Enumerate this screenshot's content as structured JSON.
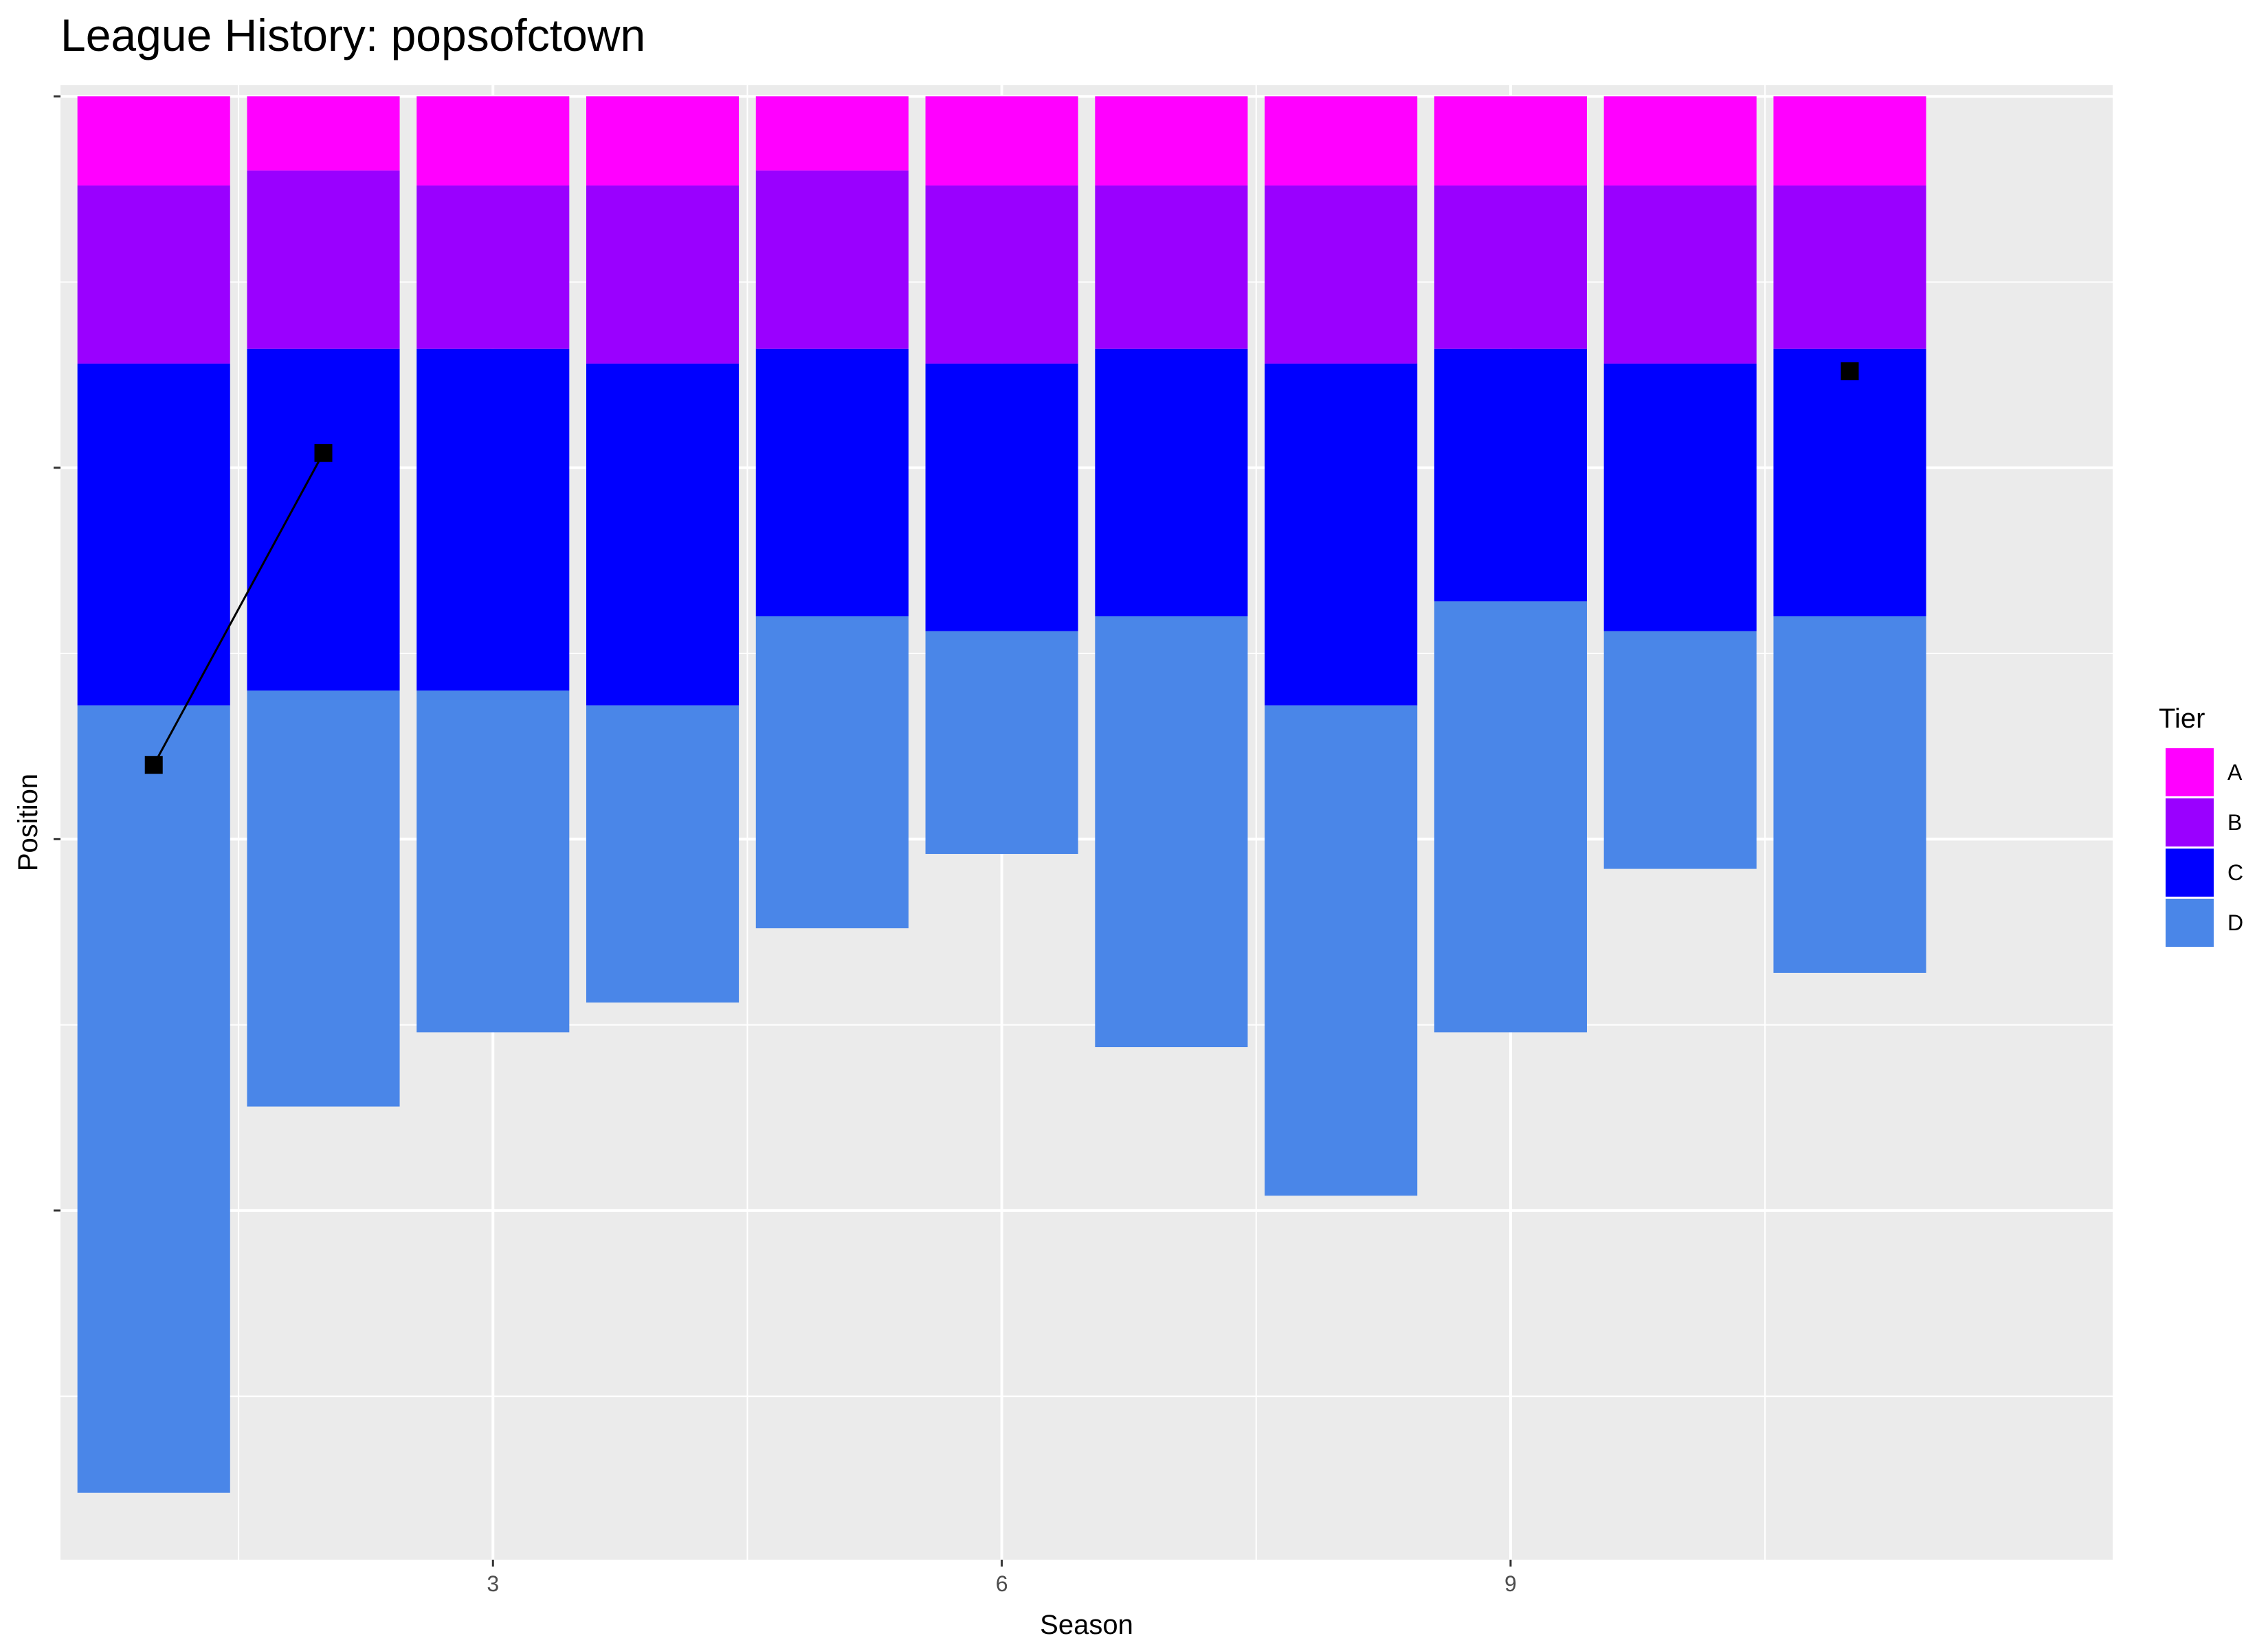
{
  "chart_data": {
    "type": "bar",
    "title": "League History: popsofctown",
    "xlabel": "Season",
    "ylabel": "Position",
    "x_ticks": [
      3,
      6,
      9
    ],
    "xlim": [
      0.45,
      12.55
    ],
    "y_ticks": [
      0,
      -50,
      -100,
      -150
    ],
    "ylim": [
      -197,
      1.5
    ],
    "y_tick_labels_shown": false,
    "grid": true,
    "legend": {
      "title": "Tier",
      "position": "right",
      "entries": [
        {
          "name": "A",
          "color": "#FF00FF"
        },
        {
          "name": "B",
          "color": "#9A00FF"
        },
        {
          "name": "C",
          "color": "#0000FF"
        },
        {
          "name": "D",
          "color": "#4A86E8"
        }
      ]
    },
    "seasons": [
      1,
      2,
      3,
      4,
      5,
      6,
      7,
      8,
      9,
      10,
      11
    ],
    "series": [
      {
        "name": "A",
        "color": "#FF00FF",
        "values": [
          12,
          10,
          12,
          12,
          10,
          12,
          12,
          12,
          12,
          12,
          12
        ]
      },
      {
        "name": "B",
        "color": "#9A00FF",
        "values": [
          24,
          24,
          22,
          24,
          24,
          24,
          22,
          24,
          22,
          24,
          22
        ]
      },
      {
        "name": "C",
        "color": "#0000FF",
        "values": [
          46,
          46,
          46,
          46,
          36,
          36,
          36,
          46,
          34,
          36,
          36
        ]
      },
      {
        "name": "D",
        "color": "#4A86E8",
        "values": [
          106,
          56,
          46,
          40,
          42,
          30,
          58,
          66,
          58,
          32,
          48
        ]
      }
    ],
    "team_position": {
      "marker": "square",
      "color": "#000000",
      "points": [
        {
          "season": 1,
          "position": -90
        },
        {
          "season": 2,
          "position": -48
        },
        {
          "season": 11,
          "position": -37
        }
      ],
      "connected_segments": [
        [
          0,
          1
        ]
      ]
    }
  }
}
